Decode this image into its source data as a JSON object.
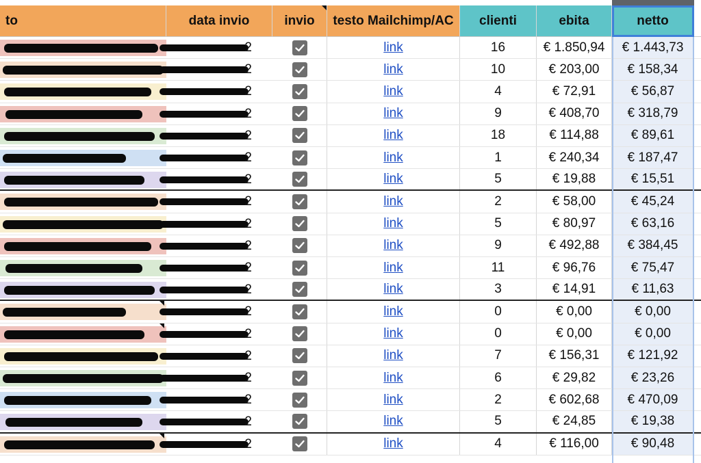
{
  "headers": {
    "name": "to",
    "date": "data invio",
    "sent": "invio",
    "template": "testo Mailchimp/AC",
    "clients": "clienti",
    "ebitda": "ebita",
    "net": "netto"
  },
  "colors": {
    "header_orange": "#f2a65a",
    "header_teal": "#5ec4c8",
    "link_blue": "#1f4fc4",
    "selection_blue": "#3f7fd9",
    "stripe_red": "#efc2bc",
    "stripe_peach": "#f6dfcc",
    "stripe_yellow": "#f8efcf",
    "stripe_green": "#d9ead3",
    "stripe_blue": "#cfe0f3",
    "stripe_lavender": "#ddd7ee"
  },
  "rows": [
    {
      "name_stripe": "#efc2bc",
      "date_tail": "2",
      "sent": true,
      "link": "link",
      "clients": "16",
      "ebitda": "€ 1.850,94",
      "net": "€ 1.443,73",
      "group_end": false
    },
    {
      "name_stripe": "#f6dfcc",
      "date_tail": "2",
      "sent": true,
      "link": "link",
      "clients": "10",
      "ebitda": "€ 203,00",
      "net": "€ 158,34",
      "group_end": false
    },
    {
      "name_stripe": "#f8efcf",
      "date_tail": "2",
      "sent": true,
      "link": "link",
      "clients": "4",
      "ebitda": "€ 72,91",
      "net": "€ 56,87",
      "group_end": false
    },
    {
      "name_stripe": "#efc2bc",
      "date_tail": "2",
      "sent": true,
      "link": "link",
      "clients": "9",
      "ebitda": "€ 408,70",
      "net": "€ 318,79",
      "group_end": false
    },
    {
      "name_stripe": "#d9ead3",
      "date_tail": "2",
      "sent": true,
      "link": "link",
      "clients": "18",
      "ebitda": "€ 114,88",
      "net": "€ 89,61",
      "group_end": false
    },
    {
      "name_stripe": "#cfe0f3",
      "date_tail": "2",
      "sent": true,
      "link": "link",
      "clients": "1",
      "ebitda": "€ 240,34",
      "net": "€ 187,47",
      "group_end": false
    },
    {
      "name_stripe": "#ddd7ee",
      "date_tail": "2",
      "sent": true,
      "link": "link",
      "clients": "5",
      "ebitda": "€ 19,88",
      "net": "€ 15,51",
      "group_end": true
    },
    {
      "name_stripe": "#f6dfcc",
      "date_tail": "2",
      "sent": true,
      "link": "link",
      "clients": "2",
      "ebitda": "€ 58,00",
      "net": "€ 45,24",
      "group_end": false
    },
    {
      "name_stripe": "#f8efcf",
      "date_tail": "2",
      "sent": true,
      "link": "link",
      "clients": "5",
      "ebitda": "€ 80,97",
      "net": "€ 63,16",
      "group_end": false
    },
    {
      "name_stripe": "#efc2bc",
      "date_tail": "2",
      "sent": true,
      "link": "link",
      "clients": "9",
      "ebitda": "€ 492,88",
      "net": "€ 384,45",
      "group_end": false
    },
    {
      "name_stripe": "#d9ead3",
      "date_tail": "2",
      "sent": true,
      "link": "link",
      "clients": "11",
      "ebitda": "€ 96,76",
      "net": "€ 75,47",
      "group_end": false
    },
    {
      "name_stripe": "#ddd7ee",
      "date_tail": "2",
      "sent": true,
      "link": "link",
      "clients": "3",
      "ebitda": "€ 14,91",
      "net": "€ 11,63",
      "group_end": true
    },
    {
      "name_stripe": "#f6dfcc",
      "date_tail": "2",
      "sent": true,
      "link": "link",
      "clients": "0",
      "ebitda": "€ 0,00",
      "net": "€ 0,00",
      "group_end": false
    },
    {
      "name_stripe": "#efc2bc",
      "date_tail": "2",
      "sent": true,
      "link": "link",
      "clients": "0",
      "ebitda": "€ 0,00",
      "net": "€ 0,00",
      "group_end": false
    },
    {
      "name_stripe": "#f8efcf",
      "date_tail": "2",
      "sent": true,
      "link": "link",
      "clients": "7",
      "ebitda": "€ 156,31",
      "net": "€ 121,92",
      "group_end": false
    },
    {
      "name_stripe": "#d9ead3",
      "date_tail": "2",
      "sent": true,
      "link": "link",
      "clients": "6",
      "ebitda": "€ 29,82",
      "net": "€ 23,26",
      "group_end": false
    },
    {
      "name_stripe": "#cfe0f3",
      "date_tail": "2",
      "sent": true,
      "link": "link",
      "clients": "2",
      "ebitda": "€ 602,68",
      "net": "€ 470,09",
      "group_end": false
    },
    {
      "name_stripe": "#ddd7ee",
      "date_tail": "2",
      "sent": true,
      "link": "link",
      "clients": "5",
      "ebitda": "€ 24,85",
      "net": "€ 19,38",
      "group_end": true
    },
    {
      "name_stripe": "#f6dfcc",
      "date_tail": "2",
      "sent": true,
      "link": "link",
      "clients": "4",
      "ebitda": "€ 116,00",
      "net": "€ 90,48",
      "group_end": false
    }
  ]
}
